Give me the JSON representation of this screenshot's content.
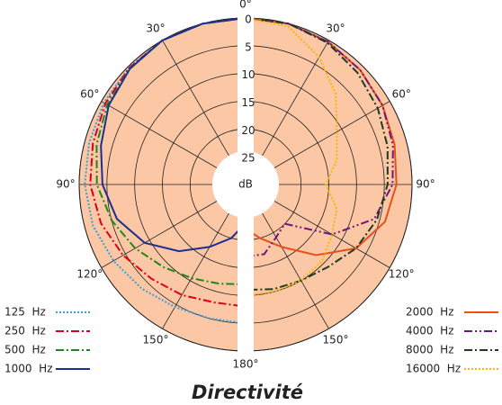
{
  "chart_data": {
    "type": "polar",
    "title": "Directivité",
    "radial_label": "dB",
    "fill_color": "#fbc7a5",
    "grid": true,
    "angles": [
      0,
      15,
      30,
      45,
      60,
      75,
      90,
      105,
      120,
      135,
      150,
      165,
      180
    ],
    "angle_ticks": [
      {
        "value": 0,
        "label": "0°"
      },
      {
        "value": 30,
        "label": "30°"
      },
      {
        "value": 60,
        "label": "60°"
      },
      {
        "value": 90,
        "label": "90°"
      },
      {
        "value": 120,
        "label": "120°"
      },
      {
        "value": 150,
        "label": "150°"
      },
      {
        "value": 180,
        "label": "180°"
      }
    ],
    "rlim": [
      0,
      30
    ],
    "rticks": [
      0,
      5,
      10,
      15,
      20,
      25
    ],
    "series": [
      {
        "name": "125  Hz",
        "side": "left",
        "color": "#3b9ddb",
        "style": "dotted",
        "values": [
          0,
          0,
          0,
          0.2,
          0.5,
          0.8,
          1,
          1.5,
          2.5,
          3.5,
          4.5,
          5,
          5
        ]
      },
      {
        "name": "250  Hz",
        "side": "left",
        "color": "#d9001b",
        "style": "dash-dot",
        "values": [
          0,
          0,
          0,
          0.3,
          0.8,
          1.5,
          2,
          3,
          4.5,
          6,
          7,
          8,
          8
        ]
      },
      {
        "name": "500  Hz",
        "side": "left",
        "color": "#1b8a1b",
        "style": "dash-dot",
        "values": [
          0,
          0,
          0,
          0.5,
          1.2,
          2.2,
          3.2,
          5,
          7,
          9,
          10.5,
          11.5,
          12
        ]
      },
      {
        "name": "1000  Hz",
        "side": "left",
        "color": "#1c2f8f",
        "style": "solid",
        "values": [
          0,
          0,
          0,
          0.5,
          1.5,
          3,
          4.2,
          6,
          9,
          13,
          17,
          20,
          23
        ]
      },
      {
        "name": "2000  Hz",
        "side": "right",
        "color": "#e8501a",
        "style": "solid",
        "values": [
          0,
          0,
          0.3,
          0.8,
          1.5,
          2.2,
          2.8,
          4,
          7,
          12,
          17,
          20,
          22
        ]
      },
      {
        "name": "4000  Hz",
        "side": "right",
        "color": "#6a1a7a",
        "style": "dash-dot-dot",
        "values": [
          0,
          0,
          0.3,
          0.8,
          1.5,
          2.5,
          3.5,
          6,
          12,
          20,
          19,
          17,
          17
        ]
      },
      {
        "name": "8000  Hz",
        "side": "right",
        "color": "#1f3a1f",
        "style": "dash-dot",
        "values": [
          0,
          0,
          0.5,
          1.5,
          2.5,
          3.5,
          4.4,
          5.5,
          7,
          9,
          10,
          10.5,
          11
        ]
      },
      {
        "name": "16000  Hz",
        "side": "right",
        "color": "#f5b800",
        "style": "dotted",
        "values": [
          0,
          0.5,
          3.5,
          7,
          11,
          13,
          15.5,
          13,
          12,
          10.5,
          10,
          10,
          10
        ]
      }
    ]
  }
}
